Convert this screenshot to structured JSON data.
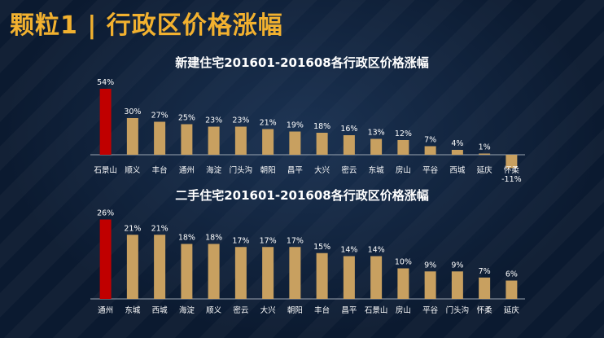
{
  "slide": {
    "title": "颗粒1 | 行政区价格涨幅"
  },
  "colors": {
    "accent": "#f2b12f",
    "bar": "#c8a060",
    "highlight": "#c00000",
    "axis": "#9aa4b0",
    "text": "#ffffff"
  },
  "chart_data": [
    {
      "type": "bar",
      "title": "新建住宅201601-201608各行政区价格涨幅",
      "categories": [
        "石景山",
        "顺义",
        "丰台",
        "通州",
        "海淀",
        "门头沟",
        "朝阳",
        "昌平",
        "大兴",
        "密云",
        "东城",
        "房山",
        "平谷",
        "西城",
        "延庆",
        "怀柔"
      ],
      "values": [
        54,
        30,
        27,
        25,
        23,
        23,
        21,
        19,
        18,
        16,
        13,
        12,
        7,
        4,
        1,
        -11
      ],
      "value_labels": [
        "54%",
        "30%",
        "27%",
        "25%",
        "23%",
        "23%",
        "21%",
        "19%",
        "18%",
        "16%",
        "13%",
        "12%",
        "7%",
        "4%",
        "1%",
        "-11%"
      ],
      "highlight_index": 0,
      "unit": "%"
    },
    {
      "type": "bar",
      "title": "二手住宅201601-201608各行政区价格涨幅",
      "categories": [
        "通州",
        "东城",
        "西城",
        "海淀",
        "顺义",
        "密云",
        "大兴",
        "朝阳",
        "丰台",
        "昌平",
        "石景山",
        "房山",
        "平谷",
        "门头沟",
        "怀柔",
        "延庆"
      ],
      "values": [
        26,
        21,
        21,
        18,
        18,
        17,
        17,
        17,
        15,
        14,
        14,
        10,
        9,
        9,
        7,
        6
      ],
      "value_labels": [
        "26%",
        "21%",
        "21%",
        "18%",
        "18%",
        "17%",
        "17%",
        "17%",
        "15%",
        "14%",
        "14%",
        "10%",
        "9%",
        "9%",
        "7%",
        "6%"
      ],
      "highlight_index": 0,
      "unit": "%"
    }
  ]
}
